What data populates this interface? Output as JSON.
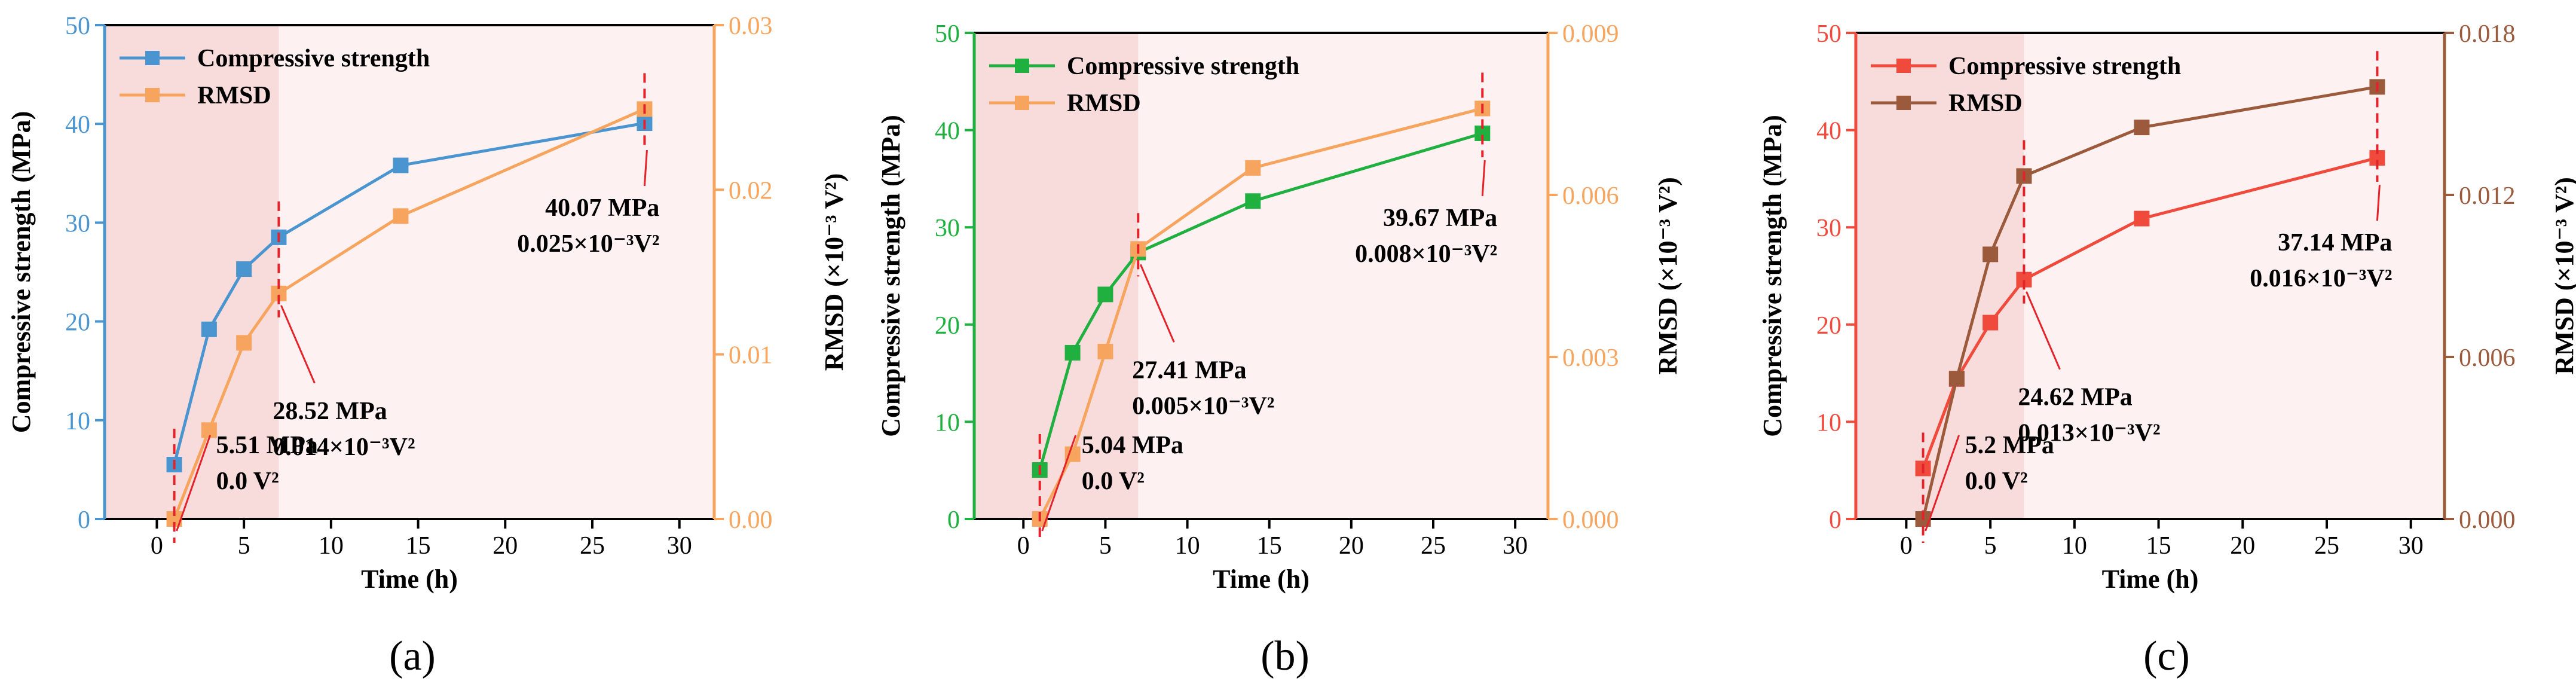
{
  "figure": {
    "panel_labels": [
      "(a)",
      "(b)",
      "(c)"
    ]
  },
  "chart_data": [
    {
      "type": "line",
      "panel": "(a)",
      "xlabel": "Time (h)",
      "ylabel_left": "Compressive strength (MPa)",
      "ylabel_right": "RMSD (×10⁻³ V²)",
      "xlim": [
        -3,
        32
      ],
      "xticks": [
        0,
        5,
        10,
        15,
        20,
        25,
        30
      ],
      "ylim_left": [
        0,
        50
      ],
      "yticks_left": [
        0,
        10,
        20,
        30,
        40,
        50
      ],
      "ylim_right": [
        0,
        0.03
      ],
      "yticks_right": [
        "0.00",
        "0.01",
        "0.02",
        "0.03"
      ],
      "shaded_region_x": [
        -3,
        7
      ],
      "series": [
        {
          "name": "Compressive strength",
          "axis": "left",
          "color": "#4a94cf",
          "x": [
            1,
            3,
            5,
            7,
            14,
            28
          ],
          "y": [
            5.51,
            19.2,
            25.3,
            28.52,
            35.8,
            40.07
          ]
        },
        {
          "name": "RMSD",
          "axis": "right",
          "color": "#f7a55e",
          "x": [
            1,
            3,
            5,
            7,
            14,
            28
          ],
          "y": [
            0.0,
            0.0054,
            0.0107,
            0.0137,
            0.0184,
            0.0249
          ]
        }
      ],
      "annotations": [
        {
          "x": 1,
          "line1": "5.51 MPa",
          "line2": "0.0 V²"
        },
        {
          "x": 7,
          "line1": "28.52 MPa",
          "line2": "0.014×10⁻³V²"
        },
        {
          "x": 28,
          "line1": "40.07 MPa",
          "line2": "0.025×10⁻³V²"
        }
      ]
    },
    {
      "type": "line",
      "panel": "(b)",
      "xlabel": "Time (h)",
      "ylabel_left": "Compressive strength (MPa)",
      "ylabel_right": "RMSD (×10⁻³ V²)",
      "xlim": [
        -3,
        32
      ],
      "xticks": [
        0,
        5,
        10,
        15,
        20,
        25,
        30
      ],
      "ylim_left": [
        0,
        50
      ],
      "yticks_left": [
        0,
        10,
        20,
        30,
        40,
        50
      ],
      "ylim_right": [
        0,
        0.009
      ],
      "yticks_right": [
        "0.000",
        "0.003",
        "0.006",
        "0.009"
      ],
      "shaded_region_x": [
        -3,
        7
      ],
      "series": [
        {
          "name": "Compressive strength",
          "axis": "left",
          "color": "#1fb040",
          "x": [
            1,
            3,
            5,
            7,
            14,
            28
          ],
          "y": [
            5.04,
            17.1,
            23.1,
            27.41,
            32.7,
            39.67
          ]
        },
        {
          "name": "RMSD",
          "axis": "right",
          "color": "#f7a55e",
          "x": [
            1,
            3,
            5,
            7,
            14,
            28
          ],
          "y": [
            0.0,
            0.0012,
            0.0031,
            0.005,
            0.0065,
            0.0076
          ]
        }
      ],
      "annotations": [
        {
          "x": 1,
          "line1": "5.04 MPa",
          "line2": "0.0 V²"
        },
        {
          "x": 7,
          "line1": "27.41 MPa",
          "line2": "0.005×10⁻³V²"
        },
        {
          "x": 28,
          "line1": "39.67 MPa",
          "line2": "0.008×10⁻³V²"
        }
      ]
    },
    {
      "type": "line",
      "panel": "(c)",
      "xlabel": "Time (h)",
      "ylabel_left": "Compressive strength (MPa)",
      "ylabel_right": "RMSD (×10⁻³ V²)",
      "xlim": [
        -3,
        32
      ],
      "xticks": [
        0,
        5,
        10,
        15,
        20,
        25,
        30
      ],
      "ylim_left": [
        0,
        50
      ],
      "yticks_left": [
        0,
        10,
        20,
        30,
        40,
        50
      ],
      "ylim_right": [
        0,
        0.018
      ],
      "yticks_right": [
        "0.000",
        "0.006",
        "0.012",
        "0.018"
      ],
      "shaded_region_x": [
        -3,
        7
      ],
      "series": [
        {
          "name": "Compressive strength",
          "axis": "left",
          "color": "#f04a3c",
          "x": [
            1,
            3,
            5,
            7,
            14,
            28
          ],
          "y": [
            5.2,
            14.4,
            20.2,
            24.62,
            30.9,
            37.14
          ]
        },
        {
          "name": "RMSD",
          "axis": "right",
          "color": "#9c5a3c",
          "x": [
            1,
            3,
            5,
            7,
            14,
            28
          ],
          "y": [
            0.0,
            0.0052,
            0.0098,
            0.0127,
            0.0145,
            0.016
          ]
        }
      ],
      "annotations": [
        {
          "x": 1,
          "line1": "5.2 MPa",
          "line2": "0.0 V²"
        },
        {
          "x": 7,
          "line1": "24.62 MPa",
          "line2": "0.013×10⁻³V²"
        },
        {
          "x": 28,
          "line1": "37.14 MPa",
          "line2": "0.016×10⁻³V²"
        }
      ]
    }
  ],
  "colors": {
    "left_axis": [
      "#4a94cf",
      "#1fb040",
      "#f04a3c"
    ],
    "right_axis": [
      "#f7a55e",
      "#f7a55e",
      "#9c5a3c"
    ],
    "background": "#fdf1f1",
    "shade": "#f8dcdc",
    "annotation": "#e3222a"
  }
}
